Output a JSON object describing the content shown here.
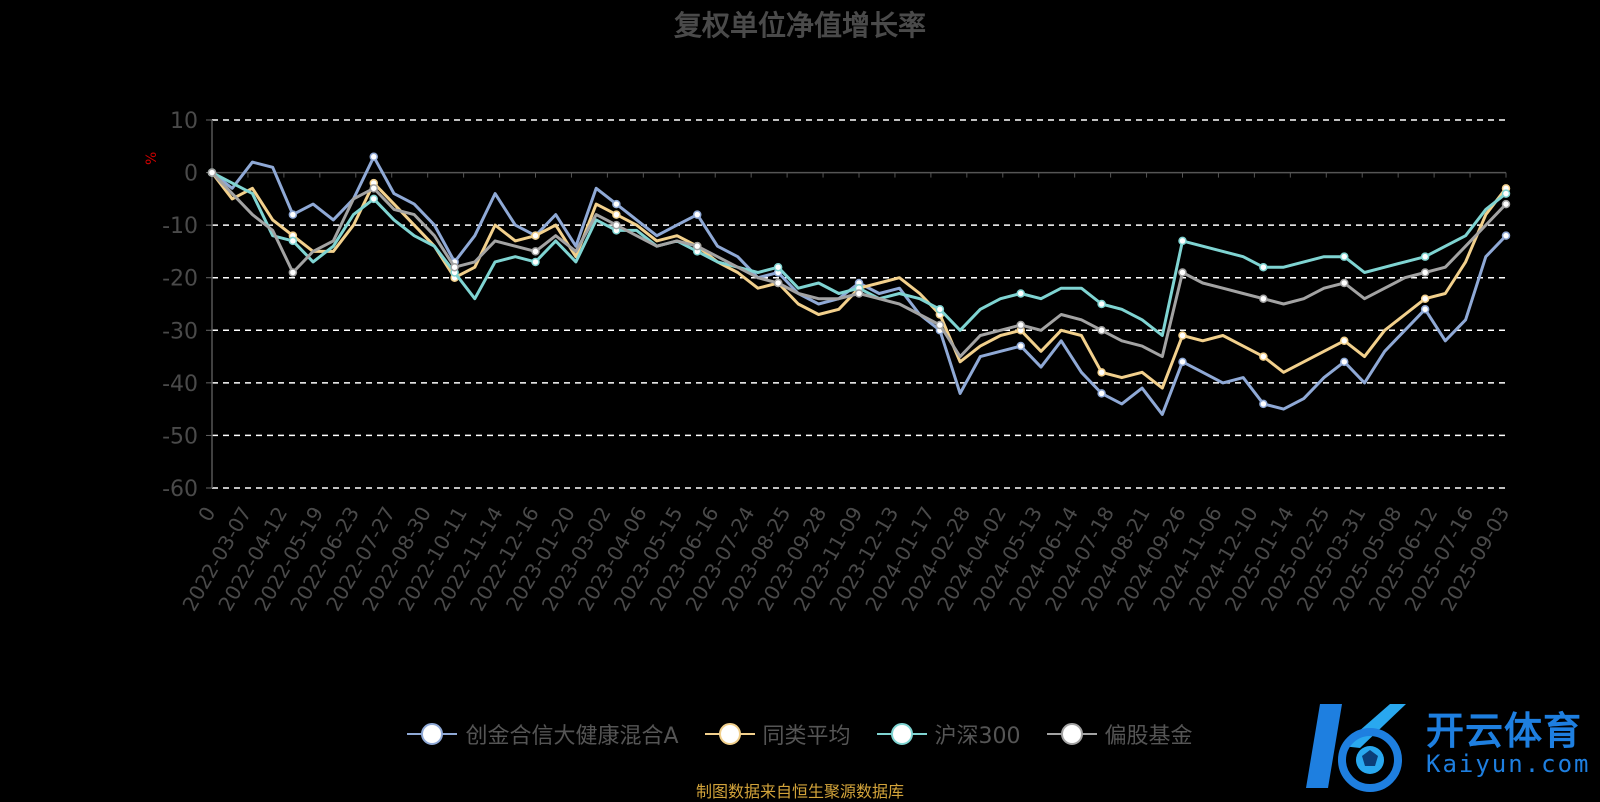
{
  "colors": {
    "background": "#000000",
    "grid": "#ffffff",
    "axis_text": "#4a4a4a",
    "unit": "#cc0000",
    "source_text": "#d2a33a",
    "logo": "#1e7fe0"
  },
  "chart_data": {
    "type": "line",
    "title": "复权单位净值增长率",
    "ylabel": "%",
    "ylim": [
      -60,
      10
    ],
    "yticks": [
      10,
      0,
      -10,
      -20,
      -30,
      -40,
      -50,
      -60
    ],
    "grid": true,
    "legend_position": "bottom",
    "x_tick_labels": [
      "0",
      "2022-03-07",
      "2022-04-12",
      "2022-05-19",
      "2022-06-23",
      "2022-07-27",
      "2022-08-30",
      "2022-10-11",
      "2022-11-14",
      "2022-12-16",
      "2023-01-20",
      "2023-03-02",
      "2023-04-06",
      "2023-05-15",
      "2023-06-16",
      "2023-07-24",
      "2023-08-25",
      "2023-09-28",
      "2023-11-09",
      "2023-12-13",
      "2024-01-17",
      "2024-02-28",
      "2024-04-02",
      "2024-05-13",
      "2024-06-14",
      "2024-07-18",
      "2024-08-21",
      "2024-09-26",
      "2024-11-06",
      "2024-12-10",
      "2025-01-14",
      "2025-02-25",
      "2025-03-31",
      "2025-05-08",
      "2025-06-12",
      "2025-07-16",
      "2025-09-03"
    ],
    "series": [
      {
        "name": "创金合信大健康混合A",
        "color": "#8fa9d6",
        "values": [
          0,
          -3,
          2,
          1,
          -8,
          -6,
          -9,
          -5,
          3,
          -4,
          -6,
          -10,
          -17,
          -12,
          -4,
          -10,
          -12,
          -8,
          -14,
          -3,
          -6,
          -9,
          -12,
          -10,
          -8,
          -14,
          -16,
          -20,
          -19,
          -23,
          -25,
          -24,
          -21,
          -23,
          -22,
          -27,
          -30,
          -42,
          -35,
          -34,
          -33,
          -37,
          -32,
          -38,
          -42,
          -44,
          -41,
          -46,
          -36,
          -38,
          -40,
          -39,
          -44,
          -45,
          -43,
          -39,
          -36,
          -40,
          -34,
          -30,
          -26,
          -32,
          -28,
          -16,
          -12
        ]
      },
      {
        "name": "同类平均",
        "color": "#f2d08c",
        "values": [
          0,
          -5,
          -3,
          -9,
          -12,
          -15,
          -15,
          -10,
          -2,
          -6,
          -10,
          -14,
          -20,
          -18,
          -10,
          -13,
          -12,
          -10,
          -16,
          -6,
          -8,
          -10,
          -13,
          -12,
          -14,
          -17,
          -19,
          -22,
          -21,
          -25,
          -27,
          -26,
          -22,
          -21,
          -20,
          -23,
          -27,
          -36,
          -33,
          -31,
          -30,
          -34,
          -30,
          -31,
          -38,
          -39,
          -38,
          -41,
          -31,
          -32,
          -31,
          -33,
          -35,
          -38,
          -36,
          -34,
          -32,
          -35,
          -30,
          -27,
          -24,
          -23,
          -17,
          -8,
          -3
        ]
      },
      {
        "name": "沪深300",
        "color": "#7fd4d2",
        "values": [
          0,
          -2,
          -4,
          -12,
          -13,
          -17,
          -14,
          -8,
          -5,
          -9,
          -12,
          -14,
          -19,
          -24,
          -17,
          -16,
          -17,
          -13,
          -17,
          -9,
          -11,
          -11,
          -14,
          -13,
          -15,
          -17,
          -18,
          -19,
          -18,
          -22,
          -21,
          -23,
          -22,
          -24,
          -23,
          -24,
          -26,
          -30,
          -26,
          -24,
          -23,
          -24,
          -22,
          -22,
          -25,
          -26,
          -28,
          -31,
          -13,
          -14,
          -15,
          -16,
          -18,
          -18,
          -17,
          -16,
          -16,
          -19,
          -18,
          -17,
          -16,
          -14,
          -12,
          -7,
          -4
        ]
      },
      {
        "name": "偏股基金",
        "color": "#a3a3a3",
        "values": [
          0,
          -4,
          -8,
          -11,
          -19,
          -15,
          -13,
          -5,
          -3,
          -7,
          -8,
          -12,
          -18,
          -17,
          -13,
          -14,
          -15,
          -12,
          -15,
          -8,
          -10,
          -12,
          -14,
          -13,
          -14,
          -16,
          -18,
          -20,
          -21,
          -23,
          -24,
          -24,
          -23,
          -24,
          -25,
          -27,
          -29,
          -35,
          -31,
          -30,
          -29,
          -30,
          -27,
          -28,
          -30,
          -32,
          -33,
          -35,
          -19,
          -21,
          -22,
          -23,
          -24,
          -25,
          -24,
          -22,
          -21,
          -24,
          -22,
          -20,
          -19,
          -18,
          -14,
          -10,
          -6
        ]
      }
    ]
  },
  "source_note": "制图数据来自恒生聚源数据库",
  "watermark": {
    "cn": "开云体育",
    "en": "Kaiyun.com"
  }
}
